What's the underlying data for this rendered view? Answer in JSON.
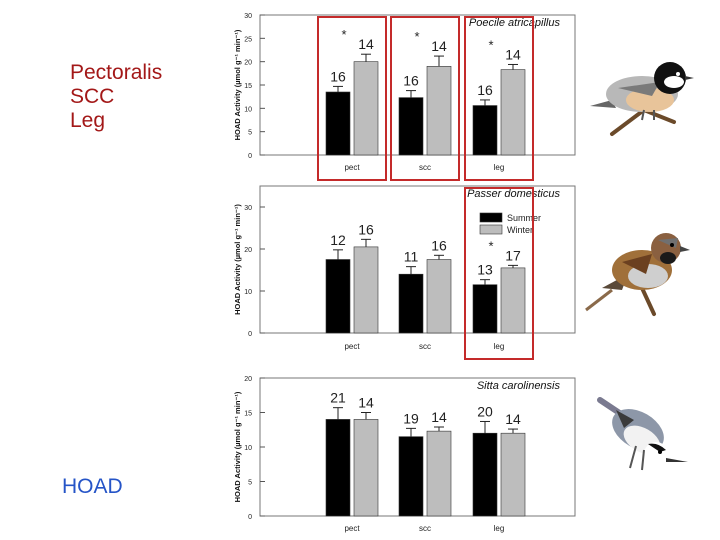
{
  "left_labels": [
    "Pectoralis",
    "SCC",
    "Leg"
  ],
  "bottom_label": "HOAD",
  "colors": {
    "summer": "#000000",
    "winter": "#bdbdbd",
    "highlight": "#c42a2a",
    "left_text": "#a31818",
    "hoad_text": "#2554c7"
  },
  "chart_data": [
    {
      "type": "bar",
      "title": "Poecile atricapillus",
      "ylabel": "HOAD Activity (µmol g⁻¹ min⁻¹)",
      "ylim": [
        0,
        30
      ],
      "yticks": [
        "0",
        "5",
        "10",
        "15",
        "20",
        "25",
        "30"
      ],
      "categories": [
        "pect",
        "scc",
        "leg"
      ],
      "series": [
        {
          "name": "Summer",
          "values": [
            13.5,
            12.3,
            10.6
          ],
          "errors": [
            1.2,
            1.5,
            1.2
          ],
          "n": [
            "16",
            "16",
            "16"
          ]
        },
        {
          "name": "Winter",
          "values": [
            20.0,
            19.0,
            18.3
          ],
          "errors": [
            1.6,
            2.2,
            1.1
          ],
          "n": [
            "14",
            "14",
            "14"
          ]
        }
      ],
      "significance": [
        "*",
        "*",
        "*"
      ],
      "highlighted": [
        true,
        true,
        true
      ],
      "bird": "chickadee-illustration"
    },
    {
      "type": "bar",
      "title": "Passer domesticus",
      "ylabel": "HOAD Activity (µmol g⁻¹ min⁻¹)",
      "ylim": [
        0,
        35
      ],
      "yticks": [
        "0",
        "10",
        "20",
        "30"
      ],
      "categories": [
        "pect",
        "scc",
        "leg"
      ],
      "series": [
        {
          "name": "Summer",
          "values": [
            17.5,
            14.0,
            11.5
          ],
          "errors": [
            2.3,
            1.8,
            1.2
          ],
          "n": [
            "12",
            "11",
            "13"
          ]
        },
        {
          "name": "Winter",
          "values": [
            20.5,
            17.5,
            15.5
          ],
          "errors": [
            1.8,
            1.0,
            0.6
          ],
          "n": [
            "16",
            "16",
            "17"
          ]
        }
      ],
      "significance": [
        "",
        "",
        "*"
      ],
      "highlighted": [
        false,
        false,
        true
      ],
      "legend": [
        "Summer",
        "Winter"
      ],
      "bird": "house-sparrow-illustration"
    },
    {
      "type": "bar",
      "title": "Sitta carolinensis",
      "ylabel": "HOAD Activity (µmol g⁻¹ min⁻¹)",
      "ylim": [
        0,
        20
      ],
      "yticks": [
        "0",
        "5",
        "10",
        "15",
        "20"
      ],
      "categories": [
        "pect",
        "scc",
        "leg"
      ],
      "series": [
        {
          "name": "Summer",
          "values": [
            14.0,
            11.5,
            12.0
          ],
          "errors": [
            1.7,
            1.2,
            1.7
          ],
          "n": [
            "21",
            "19",
            "20"
          ]
        },
        {
          "name": "Winter",
          "values": [
            14.0,
            12.3,
            12.0
          ],
          "errors": [
            1.0,
            0.6,
            0.6
          ],
          "n": [
            "14",
            "14",
            "14"
          ]
        }
      ],
      "significance": [
        "",
        "",
        ""
      ],
      "highlighted": [
        false,
        false,
        false
      ],
      "bird": "nuthatch-illustration"
    }
  ]
}
